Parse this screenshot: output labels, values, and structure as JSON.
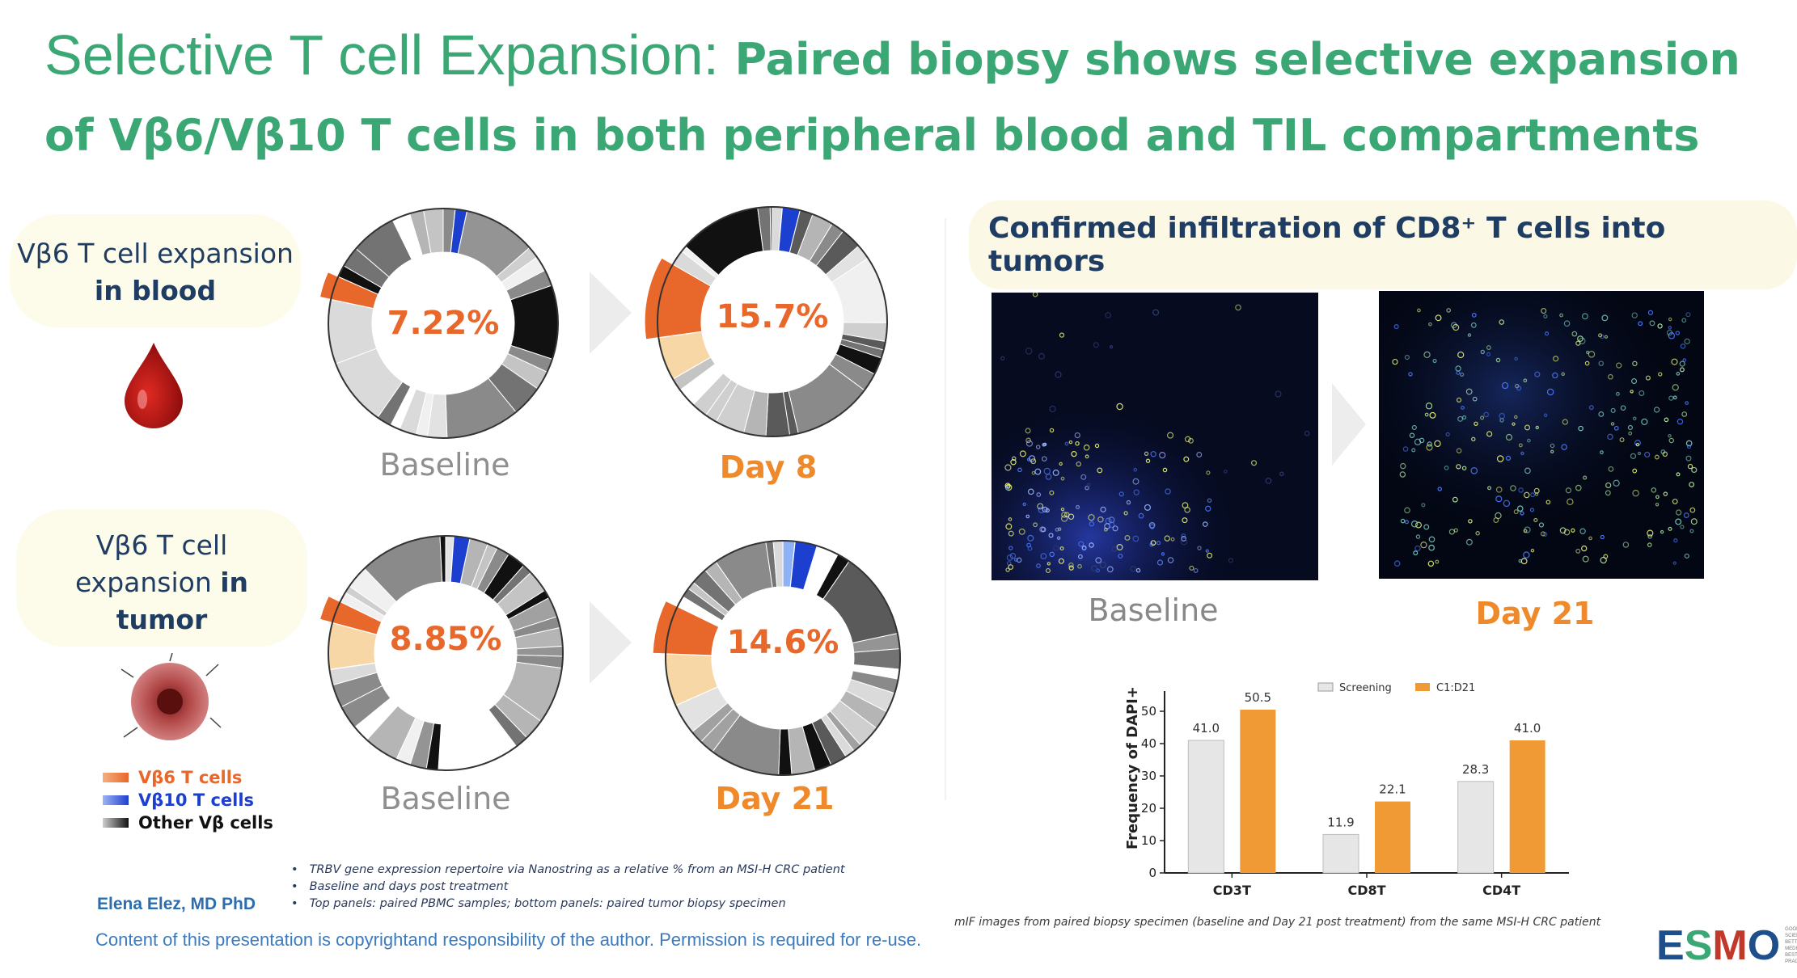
{
  "title": {
    "part1": "Selective T cell Expansion: ",
    "part2": "Paired biopsy shows selective expansion of Vβ6/Vβ10 T cells in both peripheral blood and TIL compartments"
  },
  "left": {
    "blood_label_pre": "Vβ6 T cell expansion ",
    "blood_label_bold": "in blood",
    "tumor_label_pre": "Vβ6 T cell expansion ",
    "tumor_label_bold": "in tumor",
    "blood_icon": "blood-drop-icon",
    "tumor_icon": "tumor-cell-icon"
  },
  "donuts": [
    {
      "id": "blood-baseline",
      "pct": "7.22%",
      "label": "Baseline"
    },
    {
      "id": "blood-day8",
      "pct": "15.7%",
      "label": "Day 8"
    },
    {
      "id": "tumor-baseline",
      "pct": "8.85%",
      "label": "Baseline"
    },
    {
      "id": "tumor-day21",
      "pct": "14.6%",
      "label": "Day 21"
    }
  ],
  "legend": [
    {
      "label": "Vβ6 T cells",
      "color": "#e8672a"
    },
    {
      "label": "Vβ10 T cells",
      "color": "#1d3fd0"
    },
    {
      "label": "Other Vβ cells",
      "color": "#111111"
    }
  ],
  "notes": [
    "TRBV gene expression repertoire via Nanostring as a relative % from an MSI-H CRC patient",
    "Baseline and days post treatment",
    "Top panels: paired PBMC samples; bottom panels: paired tumor biopsy specimen"
  ],
  "author": "Elena Elez, MD PhD",
  "copyright": "Content of this presentation is copyrightand responsibility of the author. Permission is required for re-use.",
  "infiltration": {
    "title": "Confirmed infiltration of CD8⁺ T cells into tumors",
    "baseline_label": "Baseline",
    "day21_label": "Day 21",
    "caption": "mIF images from paired biopsy specimen (baseline and Day 21 post treatment) from the same MSI-H CRC patient"
  },
  "chart_data": {
    "type": "bar",
    "categories": [
      "CD3T",
      "CD8T",
      "CD4T"
    ],
    "series": [
      {
        "name": "Screening",
        "values": [
          41.0,
          11.9,
          28.3
        ],
        "color": "#e6e6e6"
      },
      {
        "name": "C1:D21",
        "values": [
          50.5,
          22.1,
          41.0
        ],
        "color": "#ef9a35"
      }
    ],
    "value_labels": [
      [
        "41.0",
        "11.9",
        "28.3"
      ],
      [
        "50.5",
        "22.1",
        "41.0"
      ]
    ],
    "ylabel": "Frequency of DAPI+",
    "xlabel": "",
    "ylim": [
      0,
      55
    ],
    "yticks": [
      0,
      10,
      20,
      30,
      40,
      50
    ],
    "legend_position": "top-right",
    "grid": false
  },
  "esmo": {
    "logo": "ESMO",
    "tagline": [
      "GOOD SCIENCE",
      "BETTER MEDICINE",
      "BEST PRACTICE"
    ],
    "colors": {
      "E": "#1f4f8a",
      "S": "#3aa774",
      "M": "#c0392b",
      "O": "#1f4f8a"
    }
  },
  "colors": {
    "title": "#3aa774",
    "accent_orange": "#e8672a",
    "navy": "#1f3d63"
  }
}
